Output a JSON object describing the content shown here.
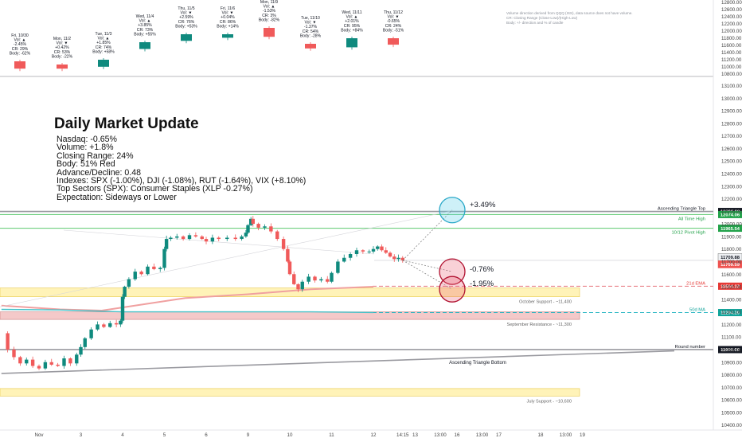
{
  "colors": {
    "up": "#0f8a7e",
    "down": "#f05a5a",
    "sma_up": "#45c2c9",
    "ema": "#f0a0a0",
    "triangle": "#a0a0a8",
    "pivot": "#6fcf7f",
    "resist_band": "#f4c9c9",
    "support_band": "#fff3b8"
  },
  "overlay": {
    "title": "Daily Market Update",
    "lines": [
      "Nasdaq: -0.65%",
      "Volume: +1.8%",
      "Closing Range: 24%",
      "Body: 51% Red",
      "Advance/Decline: 0.48",
      "Indexes: SPX (-1.00%), DJI (-1.08%), RUT (-1.64%), VIX (+8.10%)",
      "Top Sectors (SPX): Consumer Staples (XLP -0.27%)",
      "Expectation: Sideways or Lower"
    ]
  },
  "disclaimer": [
    "Volume direction derived from QQQ (ISS), data source does not have volume.",
    "",
    "CR: Closing Range (Close-Low)/(High-Low)",
    "Body: +/- direction and % of candle"
  ],
  "daily_cards": [
    {
      "date": "Fri, 10/30",
      "vol": "Vol: ▲",
      "chg": "-2.45%",
      "cr": "CR: 29%",
      "body": "Body: -62%",
      "dir": "down",
      "bodyFrac": 0.62
    },
    {
      "date": "Mon, 11/2",
      "vol": "Vol: ▼",
      "chg": "+0.42%",
      "cr": "CR: 53%",
      "body": "Body: -22%",
      "dir": "down",
      "bodyFrac": 0.22
    },
    {
      "date": "Tue, 11/3",
      "vol": "Vol: ▲",
      "chg": "+1.85%",
      "cr": "CR: 74%",
      "body": "Body: +58%",
      "dir": "up",
      "bodyFrac": 0.58
    },
    {
      "date": "Wed, 11/4",
      "vol": "Vol: ▲",
      "chg": "+3.85%",
      "cr": "CR: 73%",
      "body": "Body: +55%",
      "dir": "up",
      "bodyFrac": 0.55
    },
    {
      "date": "Thu, 11/5",
      "vol": "Vol: ▼",
      "chg": "+2.59%",
      "cr": "CR: 76%",
      "body": "Body: +53%",
      "dir": "up",
      "bodyFrac": 0.53
    },
    {
      "date": "Fri, 11/6",
      "vol": "Vol: ▼",
      "chg": "+0.04%",
      "cr": "CR: 86%",
      "body": "Body: +14%",
      "dir": "up",
      "bodyFrac": 0.14
    },
    {
      "date": "Mon, 11/9",
      "vol": "Vol: ▲",
      "chg": "-1.53%",
      "cr": "CR: 3%",
      "body": "Body: -82%",
      "dir": "down",
      "bodyFrac": 0.82
    },
    {
      "date": "Tue, 11/10",
      "vol": "Vol: ▼",
      "chg": "-1.37%",
      "cr": "CR: 54%",
      "body": "Body: -28%",
      "dir": "down",
      "bodyFrac": 0.28
    },
    {
      "date": "Wed, 11/11",
      "vol": "Vol: ▲",
      "chg": "+2.01%",
      "cr": "CR: 95%",
      "body": "Body: +84%",
      "dir": "up",
      "bodyFrac": 0.84
    },
    {
      "date": "Thu, 11/12",
      "vol": "Vol: ▼",
      "chg": "-0.65%",
      "cr": "CR: 24%",
      "body": "Body: -51%",
      "dir": "down",
      "bodyFrac": 0.51
    }
  ],
  "chart_data": {
    "type": "candlestick",
    "title": "",
    "y_axis": {
      "side": "right",
      "ticks": [
        10400,
        10500,
        10600,
        10700,
        10800,
        10900,
        11000,
        11100,
        11200,
        11300,
        11400,
        11500,
        11600,
        11700,
        11800,
        11900,
        12000,
        12100,
        12200,
        12300,
        12400,
        12500,
        12600,
        12700,
        12800,
        12900,
        13000,
        13100
      ],
      "range": [
        10360,
        13160
      ]
    },
    "top_panel_y_axis": {
      "ticks": [
        10800,
        11000,
        11200,
        11400,
        11600,
        11800,
        12000,
        12200,
        12400,
        12600,
        12800
      ],
      "range": [
        10720,
        12860
      ]
    },
    "x_axis": {
      "labels": [
        {
          "label": "Nov",
          "session": 0.0
        },
        {
          "label": "3",
          "session": 1.0
        },
        {
          "label": "4",
          "session": 2.0
        },
        {
          "label": "5",
          "session": 3.0
        },
        {
          "label": "6",
          "session": 4.0
        },
        {
          "label": "9",
          "session": 5.0
        },
        {
          "label": "10",
          "session": 6.0
        },
        {
          "label": "11",
          "session": 7.0
        },
        {
          "label": "12",
          "session": 8.0
        },
        {
          "label": "14:15",
          "session": 8.7
        },
        {
          "label": "13",
          "session": 9.0
        },
        {
          "label": "13:00",
          "session": 9.6
        },
        {
          "label": "16",
          "session": 10.0
        },
        {
          "label": "13:00",
          "session": 10.6
        },
        {
          "label": "17",
          "session": 11.0
        },
        {
          "label": "18",
          "session": 12.0
        },
        {
          "label": "13:00",
          "session": 12.6
        },
        {
          "label": "19",
          "session": 13.0
        }
      ]
    },
    "price_path": [
      [
        -0.9,
        11130
      ],
      [
        -0.75,
        11000
      ],
      [
        -0.6,
        10940
      ],
      [
        -0.45,
        10890
      ],
      [
        -0.3,
        10920
      ],
      [
        -0.15,
        10870
      ],
      [
        0.0,
        10850
      ],
      [
        0.15,
        10900
      ],
      [
        0.3,
        10880
      ],
      [
        0.45,
        10870
      ],
      [
        0.6,
        10930
      ],
      [
        0.75,
        10890
      ],
      [
        0.9,
        10960
      ],
      [
        1.0,
        11020
      ],
      [
        1.1,
        11090
      ],
      [
        1.25,
        11160
      ],
      [
        1.4,
        11200
      ],
      [
        1.55,
        11180
      ],
      [
        1.7,
        11210
      ],
      [
        1.85,
        11200
      ],
      [
        1.95,
        11230
      ],
      [
        2.0,
        11420
      ],
      [
        2.05,
        11500
      ],
      [
        2.15,
        11560
      ],
      [
        2.3,
        11620
      ],
      [
        2.45,
        11600
      ],
      [
        2.6,
        11660
      ],
      [
        2.75,
        11640
      ],
      [
        2.9,
        11650
      ],
      [
        3.0,
        11800
      ],
      [
        3.05,
        11880
      ],
      [
        3.15,
        11890
      ],
      [
        3.3,
        11900
      ],
      [
        3.45,
        11880
      ],
      [
        3.6,
        11910
      ],
      [
        3.75,
        11900
      ],
      [
        3.9,
        11880
      ],
      [
        4.0,
        11860
      ],
      [
        4.15,
        11890
      ],
      [
        4.3,
        11880
      ],
      [
        4.5,
        11890
      ],
      [
        4.7,
        11880
      ],
      [
        4.85,
        11900
      ],
      [
        4.95,
        11930
      ],
      [
        5.0,
        11990
      ],
      [
        5.07,
        12040
      ],
      [
        5.12,
        12000
      ],
      [
        5.25,
        11970
      ],
      [
        5.4,
        11980
      ],
      [
        5.55,
        11940
      ],
      [
        5.7,
        11880
      ],
      [
        5.85,
        11800
      ],
      [
        5.95,
        11700
      ],
      [
        6.0,
        11600
      ],
      [
        6.1,
        11520
      ],
      [
        6.2,
        11480
      ],
      [
        6.3,
        11540
      ],
      [
        6.45,
        11580
      ],
      [
        6.6,
        11550
      ],
      [
        6.75,
        11560
      ],
      [
        6.9,
        11540
      ],
      [
        7.0,
        11610
      ],
      [
        7.15,
        11700
      ],
      [
        7.3,
        11730
      ],
      [
        7.45,
        11760
      ],
      [
        7.6,
        11790
      ],
      [
        7.75,
        11780
      ],
      [
        7.9,
        11780
      ],
      [
        8.0,
        11800
      ],
      [
        8.1,
        11820
      ],
      [
        8.2,
        11790
      ],
      [
        8.3,
        11770
      ],
      [
        8.4,
        11740
      ],
      [
        8.5,
        11720
      ],
      [
        8.6,
        11730
      ],
      [
        8.7,
        11710
      ]
    ],
    "series": [
      {
        "name": "21d EMA",
        "values": [
          [
            -0.9,
            11350
          ],
          [
            0.5,
            11320
          ],
          [
            1.5,
            11310
          ],
          [
            2.5,
            11360
          ],
          [
            3.5,
            11410
          ],
          [
            5.0,
            11440
          ],
          [
            6.5,
            11480
          ],
          [
            8.0,
            11500
          ]
        ]
      },
      {
        "name": "50d MA",
        "values": [
          [
            -0.9,
            11320
          ],
          [
            0.5,
            11315
          ],
          [
            2.0,
            11300
          ],
          [
            3.5,
            11300
          ],
          [
            5.0,
            11300
          ],
          [
            6.5,
            11300
          ],
          [
            8.0,
            11295
          ]
        ]
      }
    ],
    "levels": [
      {
        "name": "Ascending Triangle Top",
        "value": 12098.6,
        "badge": "12098.60"
      },
      {
        "name": "All Time High",
        "value": 12074.06,
        "badge": "12074.06"
      },
      {
        "name": "10/12 Pivot High",
        "value": 11965.54,
        "badge": "11965.54"
      },
      {
        "name": "21d EMA",
        "value": 11504.33,
        "badge": "11504.33"
      },
      {
        "name": "50d MA",
        "value": 11294.2,
        "badge": "11294.20"
      },
      {
        "name": "Round number",
        "value": 11000.0,
        "badge": "11000.00"
      }
    ],
    "price_badges": [
      {
        "label": "11709.88",
        "value": 11709.88
      },
      {
        "label": "11709.59",
        "value": 11709.59
      }
    ],
    "zones": [
      {
        "label": "October Support - ~11,400",
        "low": 11420,
        "high": 11490
      },
      {
        "label": "September Resistance - ~11,300",
        "low": 11240,
        "high": 11300
      },
      {
        "label": "July Support - ~10,600",
        "low": 10630,
        "high": 10690
      }
    ],
    "trendlines": [
      {
        "name": "Ascending Triangle Bottom",
        "from": [
          -0.9,
          10810
        ],
        "to": [
          15.2,
          10990
        ]
      }
    ],
    "projections": [
      {
        "label": "+3.49%",
        "target": 12110
      },
      {
        "label": "-0.76%",
        "target": 11620
      },
      {
        "label": "-1.95%",
        "target": 11480
      }
    ]
  }
}
